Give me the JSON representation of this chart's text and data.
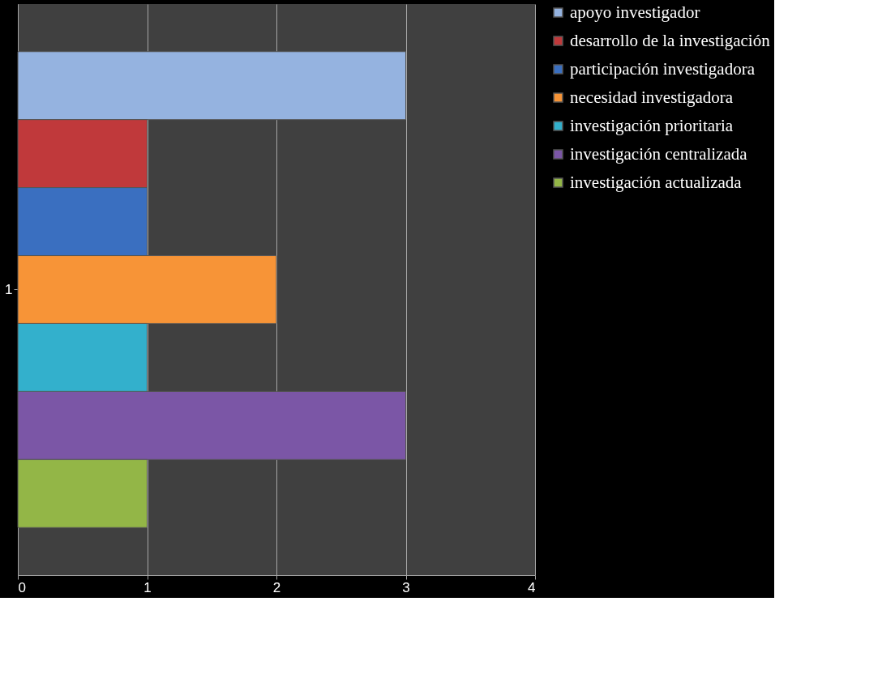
{
  "chart_data": {
    "type": "bar",
    "orientation": "horizontal",
    "categories": [
      "1"
    ],
    "series": [
      {
        "name": "apoyo investigador",
        "color": "#95b3e0",
        "values": [
          3
        ]
      },
      {
        "name": "desarrollo de la investigación",
        "color": "#c0393b",
        "values": [
          1
        ]
      },
      {
        "name": "participación investigadora",
        "color": "#3a6fc0",
        "values": [
          1
        ]
      },
      {
        "name": "necesidad investigadora",
        "color": "#f79437",
        "values": [
          2
        ]
      },
      {
        "name": "investigación prioritaria",
        "color": "#33b0cc",
        "values": [
          1
        ]
      },
      {
        "name": "investigación centralizada",
        "color": "#7b56a6",
        "values": [
          3
        ]
      },
      {
        "name": "investigación actualizada",
        "color": "#93b647",
        "values": [
          1
        ]
      }
    ],
    "xlim": [
      0,
      4
    ],
    "xticks": [
      0,
      1,
      2,
      3,
      4
    ],
    "grid": "x",
    "legend": "right"
  }
}
